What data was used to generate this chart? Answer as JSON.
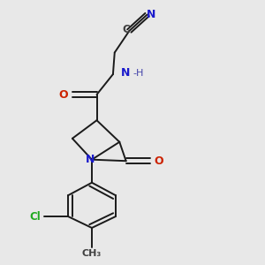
{
  "background_color": "#e8e8e8",
  "bond_color": "#1a1a1a",
  "N_color": "#1a1acc",
  "O_color": "#cc2200",
  "Cl_color": "#22aa22",
  "C_color": "#404040",
  "H_color": "#4444aa",
  "figsize": [
    3.0,
    3.0
  ],
  "dpi": 100,
  "xlim": [
    0.1,
    0.9
  ],
  "ylim": [
    0.02,
    0.98
  ]
}
